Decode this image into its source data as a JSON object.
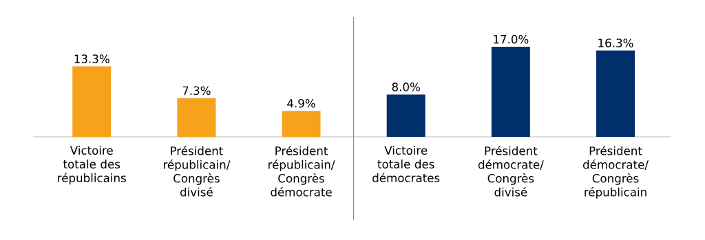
{
  "chart_data": {
    "type": "bar",
    "categories": [
      "Victoire totale des républicains",
      "Président républicain/ Congrès divisé",
      "Président républicain/ Congrès démocrate",
      "Victoire totale des démocrates",
      "Président démocrate/ Congrès divisé",
      "Président démocrate/ Congrès républicain"
    ],
    "values": [
      13.3,
      7.3,
      4.9,
      8.0,
      17.0,
      16.3
    ],
    "colors": [
      "#f7a21b",
      "#f7a21b",
      "#f7a21b",
      "#002f6c",
      "#002f6c",
      "#002f6c"
    ],
    "value_labels": [
      "13.3%",
      "7.3%",
      "4.9%",
      "8.0%",
      "17.0%",
      "16.3%"
    ]
  }
}
